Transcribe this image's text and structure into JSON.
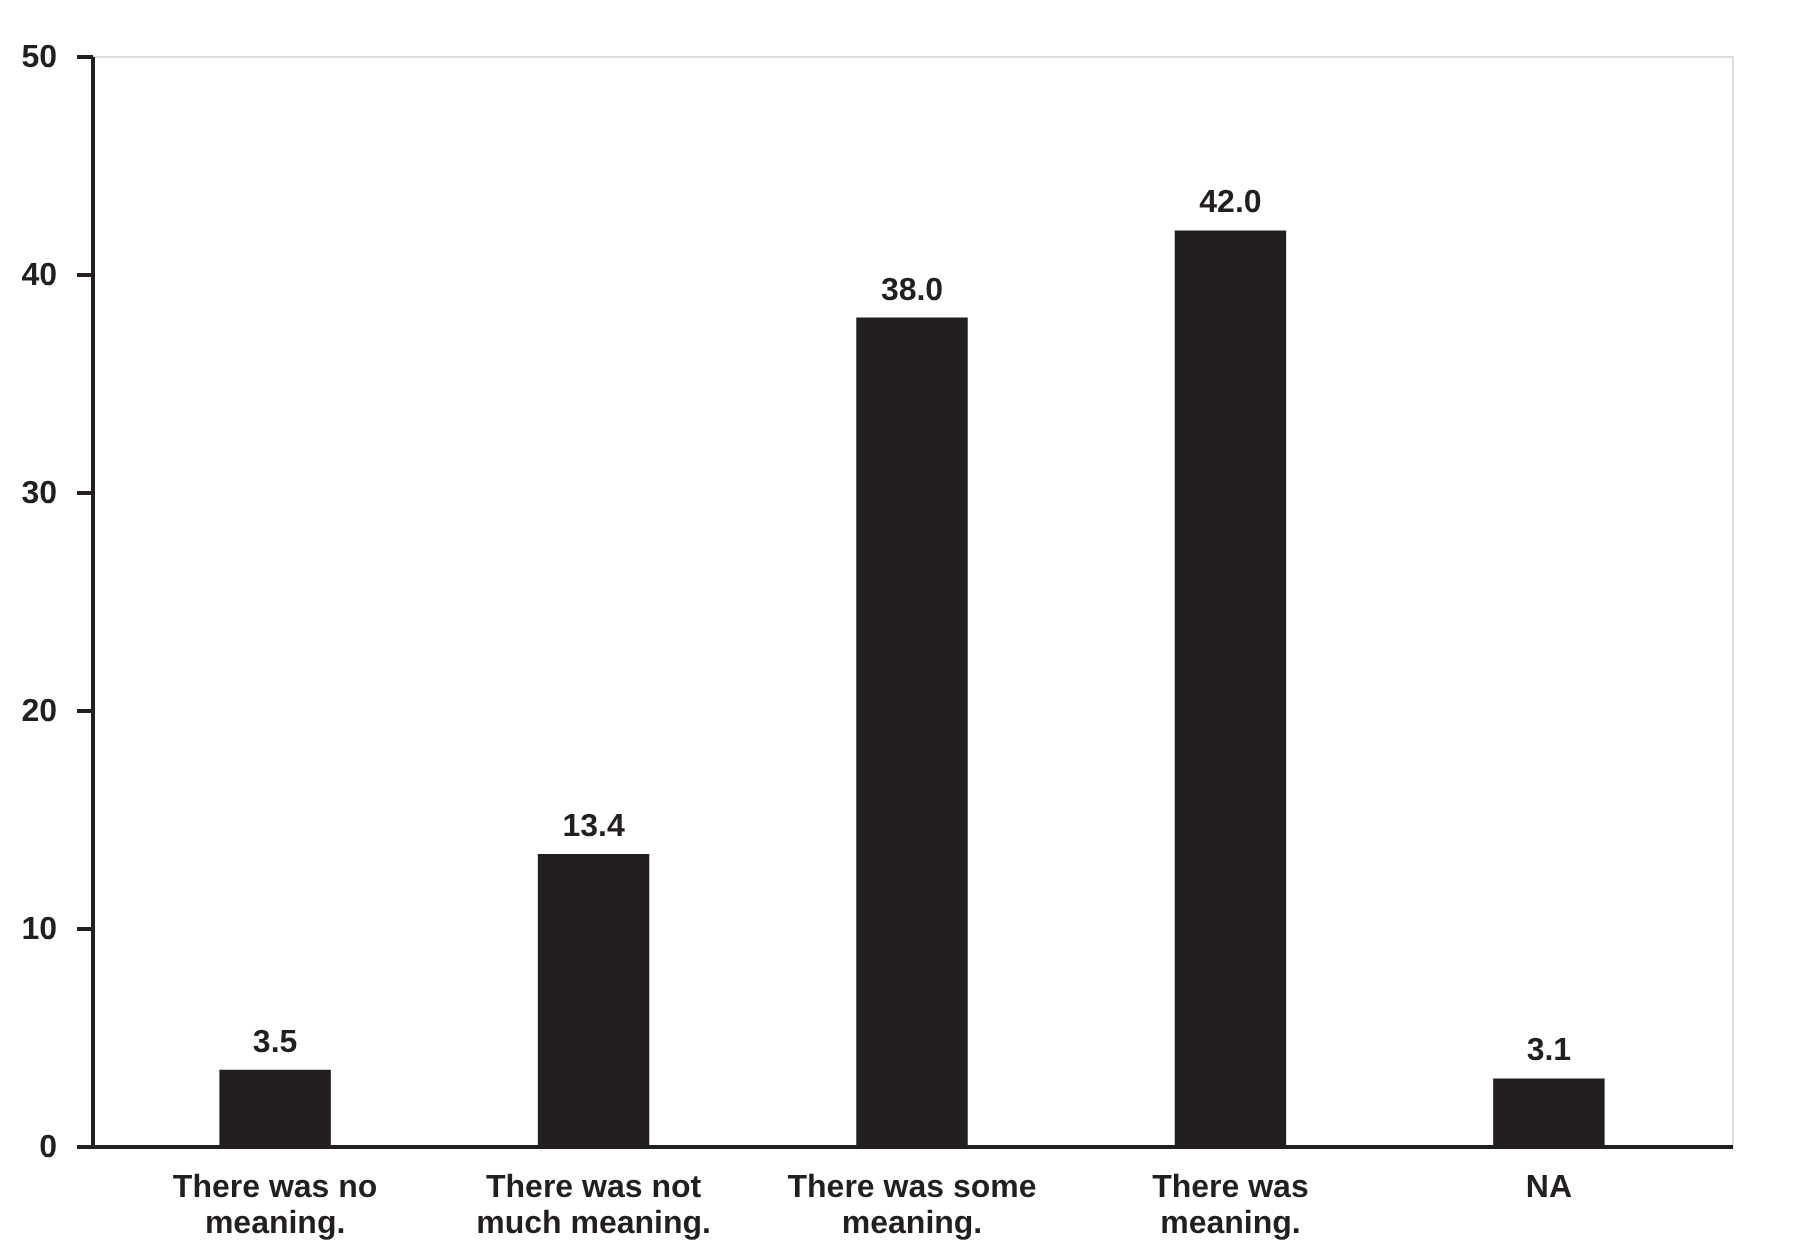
{
  "chart_data": {
    "type": "bar",
    "categories": [
      "There was no meaning.",
      "There was not much meaning.",
      "There was some meaning.",
      "There was meaning.",
      "NA"
    ],
    "values": [
      3.5,
      13.4,
      38.0,
      42.0,
      3.1
    ],
    "value_labels": [
      "3.5",
      "13.4",
      "38.0",
      "42.0",
      "3.1"
    ],
    "color": "#231f20",
    "ylim": [
      0,
      50
    ],
    "yticks": [
      0,
      10,
      20,
      30,
      40,
      50
    ],
    "grid": false
  }
}
